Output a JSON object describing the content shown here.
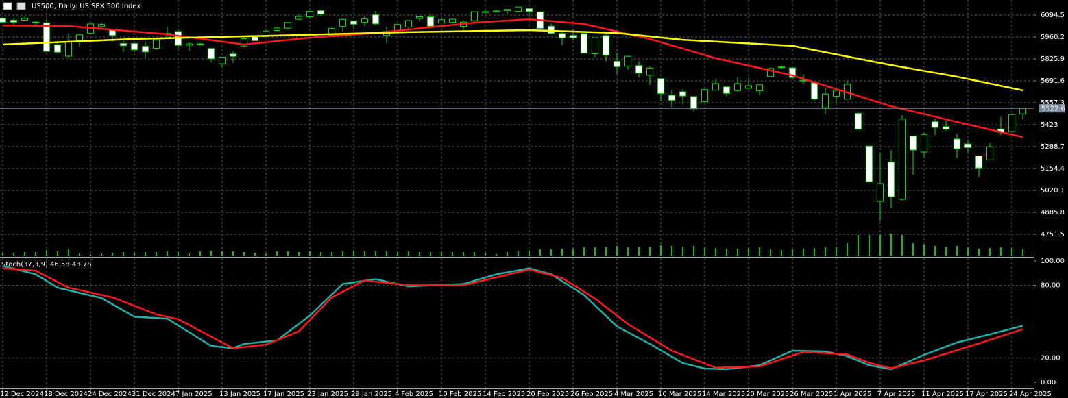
{
  "chart_data": [
    {
      "type": "candlestick",
      "title": "US500, Daily: US SPX 500 Index",
      "categories": [
        "12 Dec 2024",
        null,
        null,
        null,
        "18 Dec 2024",
        null,
        null,
        null,
        "24 Dec 2024",
        null,
        null,
        null,
        "31 Dec 2024",
        null,
        null,
        null,
        "7 Jan 2025",
        null,
        null,
        null,
        "13 Jan 2025",
        null,
        null,
        null,
        "17 Jan 2025",
        null,
        null,
        null,
        "23 Jan 2025",
        null,
        null,
        null,
        "29 Jan 2025",
        null,
        null,
        null,
        "4 Feb 2025",
        null,
        null,
        null,
        "10 Feb 2025",
        null,
        null,
        null,
        "14 Feb 2025",
        null,
        null,
        null,
        "20 Feb 2025",
        null,
        null,
        null,
        "26 Feb 2025",
        null,
        null,
        null,
        "4 Mar 2025",
        null,
        null,
        null,
        "10 Mar 2025",
        null,
        null,
        null,
        "14 Mar 2025",
        null,
        null,
        null,
        "20 Mar 2025",
        null,
        null,
        null,
        "26 Mar 2025",
        null,
        null,
        null,
        "1 Apr 2025",
        null,
        null,
        null,
        "7 Apr 2025",
        null,
        null,
        null,
        "11 Apr 2025",
        null,
        null,
        null,
        "17 Apr 2025",
        null,
        null,
        null,
        "24 Apr 2025",
        null
      ],
      "open": [
        6074,
        6063,
        6063,
        6052,
        6047,
        5912,
        5843,
        5940,
        5984,
        6024,
        6006,
        5920,
        5920,
        5903,
        5891,
        5982,
        5994,
        5910,
        5918,
        5890,
        5796,
        5856,
        5905,
        5961,
        5969,
        6000,
        6014,
        6069,
        6084,
        6121,
        5970,
        6026,
        6057,
        6050,
        6096,
        5970,
        5990,
        6021,
        6073,
        6083,
        6046,
        6050,
        6025,
        6060,
        6115,
        6115,
        6121,
        6117,
        6134,
        6114,
        6026,
        5982,
        5970,
        5981,
        5857,
        5969,
        5811,
        5782,
        5785,
        5726,
        5705,
        5603,
        5624,
        5595,
        5563,
        5635,
        5655,
        5632,
        5646,
        5630,
        5718,
        5775,
        5771,
        5695,
        5679,
        5527,
        5597,
        5580,
        5492,
        5292,
        4953,
        5193,
        4966,
        5353,
        5255,
        5441,
        5411,
        5335,
        5305,
        5232,
        5207,
        5396,
        5381,
        5489
      ],
      "high": [
        6079,
        6078,
        6085,
        6057,
        6070,
        5935,
        5982,
        5978,
        6040,
        6049,
        6006,
        5940,
        5930,
        5935,
        5950,
        6021,
        6000,
        5928,
        5925,
        5890,
        5838,
        5871,
        5960,
        5964,
        6001,
        6020,
        6051,
        6100,
        6118,
        6128,
        6018,
        6074,
        6063,
        6086,
        6120,
        6022,
        6042,
        6062,
        6084,
        6101,
        6073,
        6076,
        6063,
        6116,
        6127,
        6125,
        6129,
        6147,
        6134,
        6114,
        6043,
        5992,
        6010,
        5994,
        5959,
        5987,
        5865,
        5846,
        5812,
        5783,
        5705,
        5636,
        5642,
        5597,
        5645,
        5703,
        5655,
        5716,
        5711,
        5670,
        5775,
        5786,
        5777,
        5732,
        5680,
        5650,
        5650,
        5695,
        5500,
        5292,
        5246,
        5267,
        5481,
        5353,
        5381,
        5460,
        5450,
        5367,
        5328,
        5232,
        5309,
        5470,
        5489,
        5528
      ],
      "low": [
        6051,
        6035,
        6059,
        6035,
        5867,
        5866,
        5832,
        5902,
        5981,
        6007,
        5932,
        5869,
        5867,
        5829,
        5880,
        5961,
        5890,
        5874,
        5905,
        5807,
        5773,
        5802,
        5896,
        5935,
        5960,
        5995,
        6007,
        6064,
        6074,
        6088,
        5962,
        5994,
        6012,
        6027,
        6030,
        5923,
        5990,
        6007,
        6060,
        6020,
        6045,
        6043,
        6003,
        6051,
        6107,
        6110,
        6099,
        6111,
        6084,
        6009,
        5977,
        5908,
        5941,
        5858,
        5837,
        5810,
        5733,
        5762,
        5711,
        5667,
        5565,
        5529,
        5546,
        5504,
        5563,
        5628,
        5597,
        5622,
        5640,
        5603,
        5718,
        5764,
        5703,
        5671,
        5572,
        5488,
        5558,
        5578,
        5390,
        5069,
        4835,
        4910,
        4957,
        5115,
        5220,
        5360,
        5386,
        5220,
        5255,
        5101,
        5207,
        5359,
        5371,
        5456
      ],
      "close": [
        6051,
        6051,
        6074,
        6050,
        5872,
        5867,
        5931,
        5974,
        6040,
        6037,
        5970,
        5907,
        5882,
        5869,
        5942,
        5975,
        5909,
        5918,
        5915,
        5827,
        5836,
        5842,
        5950,
        5937,
        5997,
        6015,
        6049,
        6086,
        6118,
        6101,
        6012,
        6068,
        6039,
        6071,
        6041,
        5995,
        6037,
        6061,
        6084,
        6026,
        6066,
        6069,
        6052,
        6115,
        6115,
        6120,
        6129,
        6144,
        6117,
        6013,
        5983,
        5955,
        5956,
        5861,
        5955,
        5850,
        5778,
        5842,
        5739,
        5770,
        5614,
        5572,
        5599,
        5521,
        5638,
        5675,
        5615,
        5675,
        5662,
        5667,
        5767,
        5777,
        5712,
        5693,
        5581,
        5611,
        5633,
        5671,
        5396,
        5074,
        5062,
        4982,
        5457,
        5268,
        5363,
        5406,
        5396,
        5276,
        5283,
        5158,
        5288,
        5376,
        5485,
        5522.6
      ],
      "volume": [
        4,
        4,
        5,
        5,
        8,
        6,
        9,
        3,
        2,
        3,
        4,
        5,
        4,
        5,
        5,
        6,
        5,
        3,
        6,
        7,
        6,
        6,
        5,
        4,
        3,
        6,
        6,
        5,
        6,
        5,
        5,
        6,
        7,
        6,
        6,
        6,
        5,
        6,
        5,
        5,
        5,
        5,
        5,
        5,
        4,
        2,
        5,
        6,
        7,
        9,
        9,
        10,
        10,
        12,
        12,
        13,
        14,
        12,
        13,
        13,
        15,
        14,
        13,
        14,
        12,
        11,
        10,
        10,
        11,
        12,
        9,
        8,
        9,
        10,
        11,
        12,
        13,
        18,
        30,
        30,
        30,
        32,
        30,
        18,
        16,
        14,
        13,
        14,
        12,
        10,
        11,
        12,
        11,
        9
      ],
      "candle_color": "#00e600",
      "bear_fill": "#ffffff",
      "volume_color": "#00c800",
      "ylim": [
        4621.4,
        6186.8
      ],
      "yticks": [
        6094.5,
        5960.2,
        5825.9,
        5691.6,
        5557.3,
        5423.0,
        5288.7,
        5154.4,
        5020.1,
        4885.8,
        4751.5
      ],
      "last_price": 5522.6,
      "grid": true,
      "series": [
        {
          "color": "#ff1a1a",
          "x": [
            0,
            6,
            15,
            22,
            28,
            34,
            43,
            48,
            53,
            59,
            65,
            72,
            78,
            81,
            87,
            93
          ],
          "values": [
            6031,
            6027,
            5977,
            5914,
            5956,
            5985,
            6048,
            6069,
            6040,
            5948,
            5830,
            5725,
            5599,
            5536,
            5440,
            5347
          ]
        },
        {
          "color": "#ffff00",
          "x": [
            0,
            12,
            25,
            37,
            48,
            56,
            62,
            72,
            81,
            87,
            93
          ],
          "values": [
            5914,
            5948,
            5969,
            5990,
            6002,
            5985,
            5943,
            5906,
            5788,
            5717,
            5633
          ]
        }
      ]
    },
    {
      "type": "line",
      "title": "Stoch(37,3,9) 46.58 43.78",
      "ylim": [
        0,
        100
      ],
      "yticks": [
        {
          "value": 100,
          "label": "100.00"
        },
        {
          "value": 80,
          "label": "80.00"
        },
        {
          "value": 20,
          "label": "20.00"
        },
        {
          "value": 0,
          "label": "0.00"
        }
      ],
      "series": [
        {
          "color": "#20b2aa",
          "x": [
            0,
            3,
            5,
            9,
            12,
            15,
            19,
            21,
            22,
            25,
            28,
            31,
            34,
            37,
            42,
            45,
            48,
            50,
            53,
            56,
            59,
            62,
            64,
            66,
            69,
            72,
            75,
            77,
            79,
            81,
            84,
            87,
            90,
            93
          ],
          "values": [
            96,
            89,
            78,
            69.5,
            54,
            52.5,
            30,
            28,
            31.6,
            34.5,
            55,
            81,
            85,
            79,
            81,
            89,
            94,
            89,
            72,
            46,
            31.6,
            15.8,
            11.3,
            10.7,
            14,
            26,
            25.4,
            21.5,
            14,
            10.7,
            22.6,
            32.8,
            39.5,
            46.58
          ]
        },
        {
          "color": "#ff1a1a",
          "x": [
            0,
            3,
            6,
            10,
            14,
            16,
            21,
            24,
            27,
            30,
            33,
            37,
            42,
            48,
            51,
            54,
            57,
            61,
            65,
            69,
            73,
            77,
            79,
            81,
            84,
            89,
            93
          ],
          "values": [
            94,
            92,
            78,
            70,
            56,
            52,
            28,
            31,
            42,
            70,
            84,
            80,
            80,
            93,
            86,
            69,
            48,
            26,
            12,
            13,
            25,
            23,
            16,
            11.5,
            18,
            32,
            43.78
          ]
        }
      ]
    }
  ]
}
